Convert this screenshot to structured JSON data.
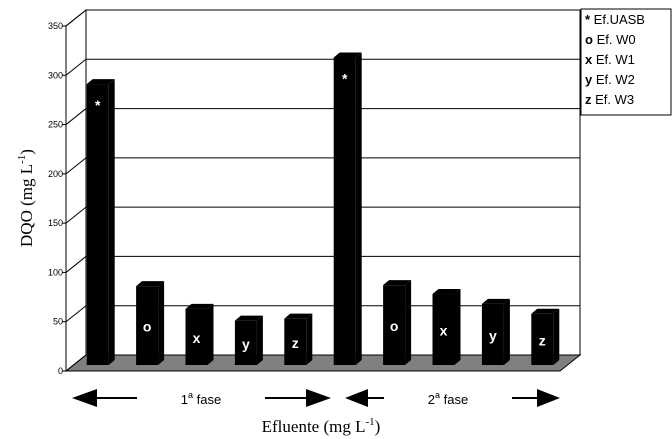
{
  "chart_data": {
    "type": "bar",
    "ylabel": "DQO (mg L-1)",
    "ylabel_main": "DQO (mg L",
    "ylabel_sup": "-1",
    "ylabel_close": ")",
    "xlabel": "Efluente (mg L-1)",
    "xlabel_main": "Efluente (mg L",
    "xlabel_sup": "-1",
    "xlabel_close": ")",
    "ylim": [
      0,
      350
    ],
    "y_ticks": [
      0,
      50,
      100,
      150,
      200,
      250,
      300,
      350
    ],
    "grid": true,
    "legend_position": "top-right",
    "legend": [
      {
        "key": "*",
        "label": "Ef.UASB"
      },
      {
        "key": "o",
        "label": "Ef. W0"
      },
      {
        "key": "x",
        "label": "Ef. W1"
      },
      {
        "key": "y",
        "label": "Ef. W2"
      },
      {
        "key": "z",
        "label": "Ef. W3"
      }
    ],
    "bars": [
      {
        "label": "*",
        "value": 285
      },
      {
        "label": "o",
        "value": 80
      },
      {
        "label": "x",
        "value": 57
      },
      {
        "label": "y",
        "value": 45
      },
      {
        "label": "z",
        "value": 47
      },
      {
        "label": "*",
        "value": 312
      },
      {
        "label": "o",
        "value": 81
      },
      {
        "label": "x",
        "value": 72
      },
      {
        "label": "y",
        "value": 62
      },
      {
        "label": "z",
        "value": 52
      }
    ],
    "phases": [
      {
        "prefix": "1",
        "sup": "a",
        "suffix": " fase"
      },
      {
        "prefix": "2",
        "sup": "a",
        "suffix": " fase"
      }
    ]
  },
  "colors": {
    "bar": "#000000",
    "floor": "#808080",
    "grid": "#000000"
  }
}
